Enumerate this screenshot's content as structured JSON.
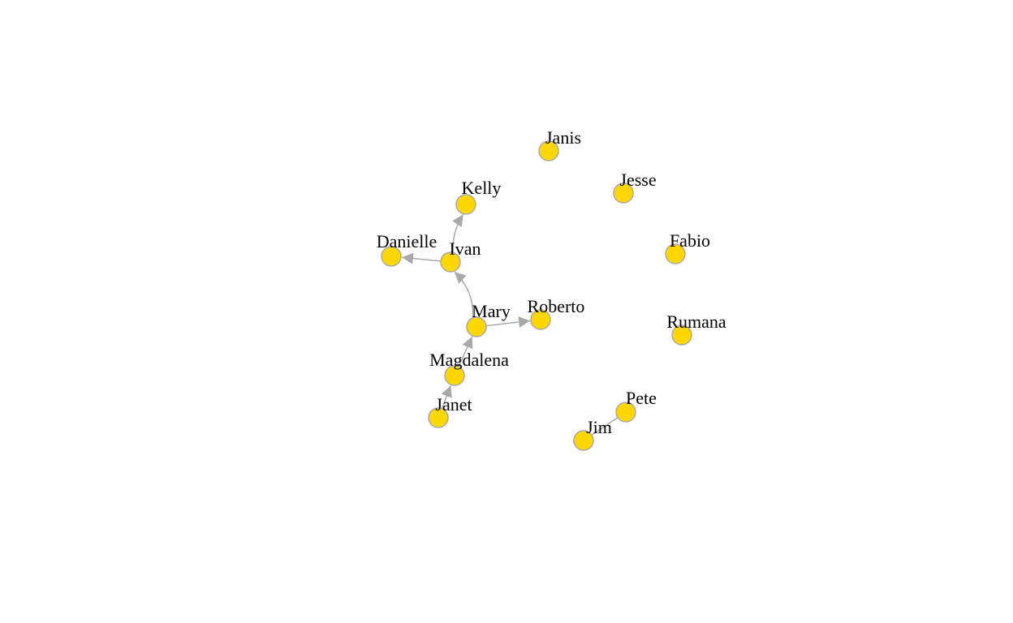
{
  "graph": {
    "node_color": "#FFD700",
    "node_border_color": "#A9A9A9",
    "edge_color": "#A9A9A9",
    "label_color": "#000000",
    "nodes": [
      {
        "id": "janis",
        "label": "Janis"
      },
      {
        "id": "jesse",
        "label": "Jesse"
      },
      {
        "id": "kelly",
        "label": "Kelly"
      },
      {
        "id": "fabio",
        "label": "Fabio"
      },
      {
        "id": "danielle",
        "label": "Danielle"
      },
      {
        "id": "ivan",
        "label": "Ivan"
      },
      {
        "id": "roberto",
        "label": "Roberto"
      },
      {
        "id": "mary",
        "label": "Mary"
      },
      {
        "id": "rumana",
        "label": "Rumana"
      },
      {
        "id": "magdalena",
        "label": "Magdalena"
      },
      {
        "id": "janet",
        "label": "Janet"
      },
      {
        "id": "pete",
        "label": "Pete"
      },
      {
        "id": "jim",
        "label": "Jim"
      }
    ],
    "edges": [
      {
        "from": "ivan",
        "to": "kelly",
        "directed": true
      },
      {
        "from": "ivan",
        "to": "danielle",
        "directed": true
      },
      {
        "from": "mary",
        "to": "ivan",
        "directed": true
      },
      {
        "from": "mary",
        "to": "roberto",
        "directed": true
      },
      {
        "from": "magdalena",
        "to": "mary",
        "directed": true
      },
      {
        "from": "janet",
        "to": "magdalena",
        "directed": true
      },
      {
        "from": "pete",
        "to": "jim",
        "directed": false
      }
    ]
  }
}
